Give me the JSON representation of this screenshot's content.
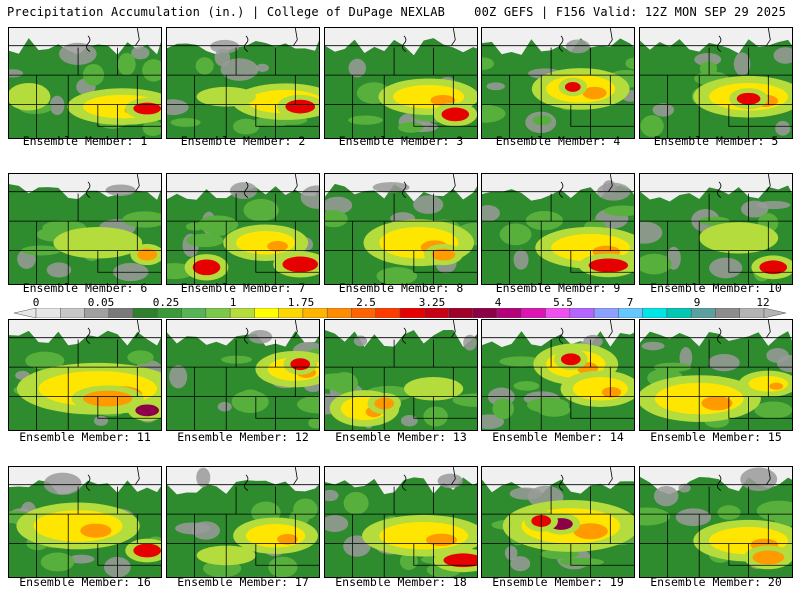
{
  "header": {
    "left": "Precipitation Accumulation (in.) | College of DuPage NEXLAB",
    "right": "00Z GEFS | F156 Valid: 12Z MON SEP 29 2025"
  },
  "members": [
    {
      "label": "Ensemble Member: 1"
    },
    {
      "label": "Ensemble Member: 2"
    },
    {
      "label": "Ensemble Member: 3"
    },
    {
      "label": "Ensemble Member: 4"
    },
    {
      "label": "Ensemble Member: 5"
    },
    {
      "label": "Ensemble Member: 6"
    },
    {
      "label": "Ensemble Member: 7"
    },
    {
      "label": "Ensemble Member: 8"
    },
    {
      "label": "Ensemble Member: 9"
    },
    {
      "label": "Ensemble Member: 10"
    },
    {
      "label": "Ensemble Member: 11"
    },
    {
      "label": "Ensemble Member: 12"
    },
    {
      "label": "Ensemble Member: 13"
    },
    {
      "label": "Ensemble Member: 14"
    },
    {
      "label": "Ensemble Member: 15"
    },
    {
      "label": "Ensemble Member: 16"
    },
    {
      "label": "Ensemble Member: 17"
    },
    {
      "label": "Ensemble Member: 18"
    },
    {
      "label": "Ensemble Member: 19"
    },
    {
      "label": "Ensemble Member: 20"
    }
  ],
  "colorbar": {
    "tick_labels": [
      "0",
      "0.05",
      "0.25",
      "1",
      "1.75",
      "2.5",
      "3.25",
      "4",
      "5.5",
      "7",
      "9",
      "12"
    ],
    "colors": [
      "#e6e6e6",
      "#c8c8c8",
      "#a0a0a0",
      "#7a7a7a",
      "#2f7f2f",
      "#3a993a",
      "#56b356",
      "#7cc84a",
      "#b4dc3c",
      "#ffff00",
      "#ffd700",
      "#ffb400",
      "#ff8c00",
      "#ff6400",
      "#ff3c00",
      "#e60000",
      "#c80014",
      "#a00028",
      "#8b0046",
      "#b4007a",
      "#dc14b4",
      "#f050f0",
      "#b464ff",
      "#8ca0ff",
      "#64c8ff",
      "#00e6e6",
      "#00c8b4",
      "#5aa0a0",
      "#8c8c8c",
      "#b4b4b4"
    ]
  },
  "map_colors": {
    "land": "#2e8b2e",
    "light_green": "#58b03c",
    "yellow_green": "#b4dc3c",
    "yellow": "#ffe600",
    "orange": "#ff9a00",
    "red": "#e60000",
    "dark_red": "#8b0046",
    "gray": "#9a9a9a",
    "white": "#f0f0f0",
    "border": "#000000"
  }
}
